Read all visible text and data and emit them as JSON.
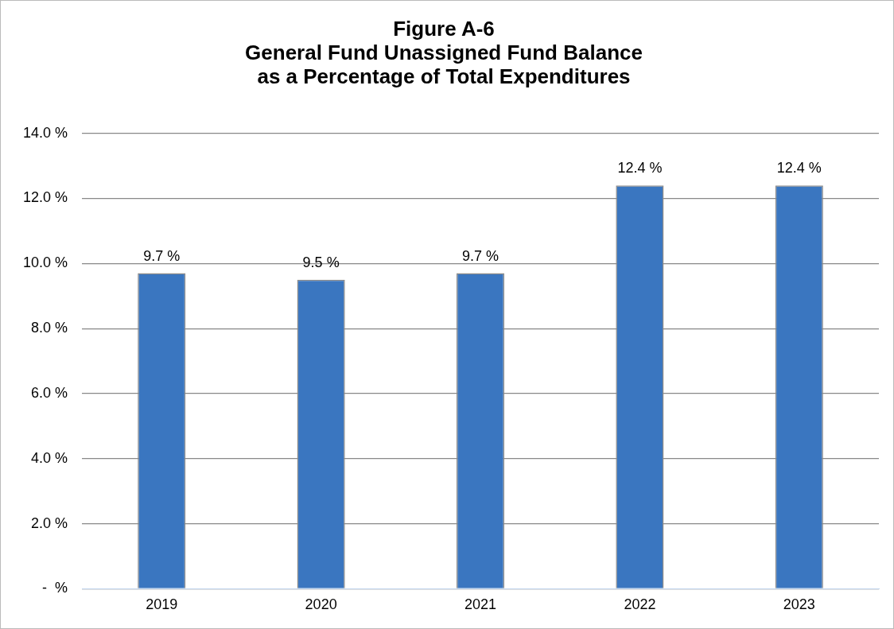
{
  "chart_data": {
    "type": "bar",
    "title": "Figure A-6\nGeneral Fund Unassigned Fund Balance\nas a Percentage of Total Expenditures",
    "categories": [
      "2019",
      "2020",
      "2021",
      "2022",
      "2023"
    ],
    "values": [
      9.7,
      9.5,
      9.7,
      12.4,
      12.4
    ],
    "value_labels": [
      "9.7 %",
      "9.5 %",
      "9.7 %",
      "12.4 %",
      "12.4 %"
    ],
    "color": "#3a76c0",
    "ylim": [
      0,
      14
    ],
    "yticks": [
      {
        "value": 0,
        "label": "-  %"
      },
      {
        "value": 2,
        "label": "2.0 %"
      },
      {
        "value": 4,
        "label": "4.0 %"
      },
      {
        "value": 6,
        "label": "6.0 %"
      },
      {
        "value": 8,
        "label": "8.0 %"
      },
      {
        "value": 10,
        "label": "10.0 %"
      },
      {
        "value": 12,
        "label": "12.0 %"
      },
      {
        "value": 14,
        "label": "14.0 %"
      }
    ],
    "grid": "y"
  }
}
